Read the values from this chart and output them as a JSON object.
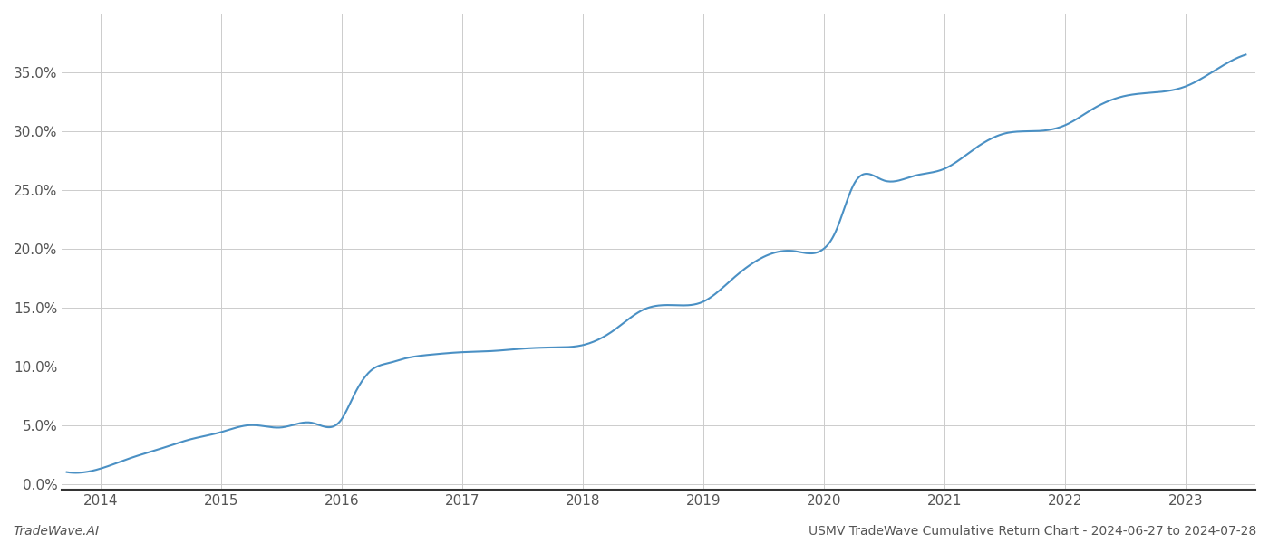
{
  "title": "USMV TradeWave Cumulative Return Chart - 2024-06-27 to 2024-07-28",
  "footnote_left": "TradeWave.AI",
  "line_color": "#4a90c4",
  "background_color": "#ffffff",
  "grid_color": "#cccccc",
  "x_years": [
    2014,
    2015,
    2016,
    2017,
    2018,
    2019,
    2020,
    2021,
    2022,
    2023
  ],
  "data_x": [
    2013.72,
    2014.0,
    2014.25,
    2014.5,
    2014.75,
    2015.0,
    2015.25,
    2015.5,
    2015.75,
    2016.0,
    2016.1,
    2016.25,
    2016.4,
    2016.5,
    2016.75,
    2017.0,
    2017.25,
    2017.5,
    2017.75,
    2018.0,
    2018.25,
    2018.5,
    2018.75,
    2019.0,
    2019.25,
    2019.5,
    2019.75,
    2020.0,
    2020.1,
    2020.25,
    2020.5,
    2020.75,
    2021.0,
    2021.25,
    2021.5,
    2021.75,
    2022.0,
    2022.25,
    2022.5,
    2022.75,
    2023.0,
    2023.25,
    2023.5
  ],
  "data_y": [
    0.01,
    0.013,
    0.022,
    0.03,
    0.038,
    0.044,
    0.05,
    0.048,
    0.052,
    0.055,
    0.075,
    0.097,
    0.103,
    0.106,
    0.11,
    0.112,
    0.113,
    0.115,
    0.116,
    0.118,
    0.13,
    0.148,
    0.152,
    0.155,
    0.175,
    0.193,
    0.198,
    0.2,
    0.215,
    0.255,
    0.258,
    0.262,
    0.268,
    0.285,
    0.298,
    0.3,
    0.305,
    0.32,
    0.33,
    0.333,
    0.338,
    0.352,
    0.365
  ],
  "ylim": [
    -0.005,
    0.4
  ],
  "xlim": [
    2013.68,
    2023.58
  ],
  "yticks": [
    0.0,
    0.05,
    0.1,
    0.15,
    0.2,
    0.25,
    0.3,
    0.35
  ],
  "ytick_labels": [
    "0.0%",
    "5.0%",
    "10.0%",
    "15.0%",
    "20.0%",
    "25.0%",
    "30.0%",
    "35.0%"
  ]
}
